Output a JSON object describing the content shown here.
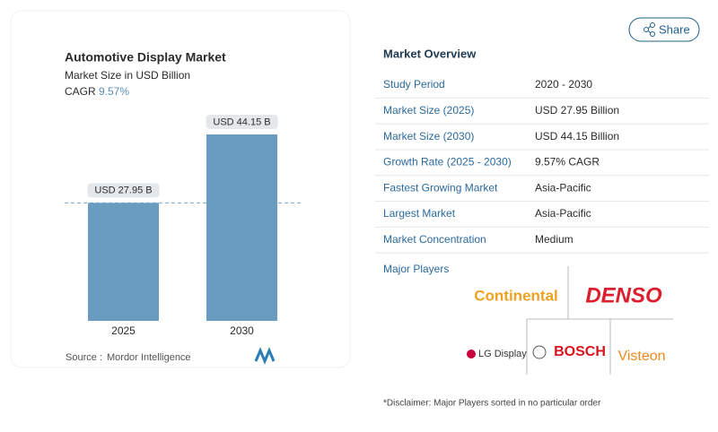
{
  "chart_data": {
    "type": "bar",
    "title": "Automotive Display Market",
    "subtitle": "Market Size in USD Billion",
    "cagr_label": "CAGR",
    "cagr": "9.57%",
    "categories": [
      "2025",
      "2030"
    ],
    "values": [
      27.95,
      44.15
    ],
    "value_labels": [
      "USD 27.95 B",
      "USD 44.15 B"
    ],
    "color": "#6a9cc1",
    "source_label": "Source :",
    "source": "Mordor Intelligence"
  },
  "share": "Share",
  "overview": {
    "title": "Market Overview",
    "rows": [
      [
        "Study Period",
        "2020 - 2030"
      ],
      [
        "Market Size (2025)",
        "USD 27.95 Billion"
      ],
      [
        "Market Size (2030)",
        "USD 44.15 Billion"
      ],
      [
        "Growth Rate (2025 - 2030)",
        "9.57% CAGR"
      ],
      [
        "Fastest Growing Market",
        "Asia-Pacific"
      ],
      [
        "Largest Market",
        "Asia-Pacific"
      ],
      [
        "Market Concentration",
        "Medium"
      ]
    ]
  },
  "players": {
    "title": "Major Players",
    "names": [
      "Continental",
      "DENSO",
      "LG Display",
      "BOSCH",
      "Visteon"
    ]
  },
  "disclaimer": "*Disclaimer: Major Players sorted in no particular order"
}
